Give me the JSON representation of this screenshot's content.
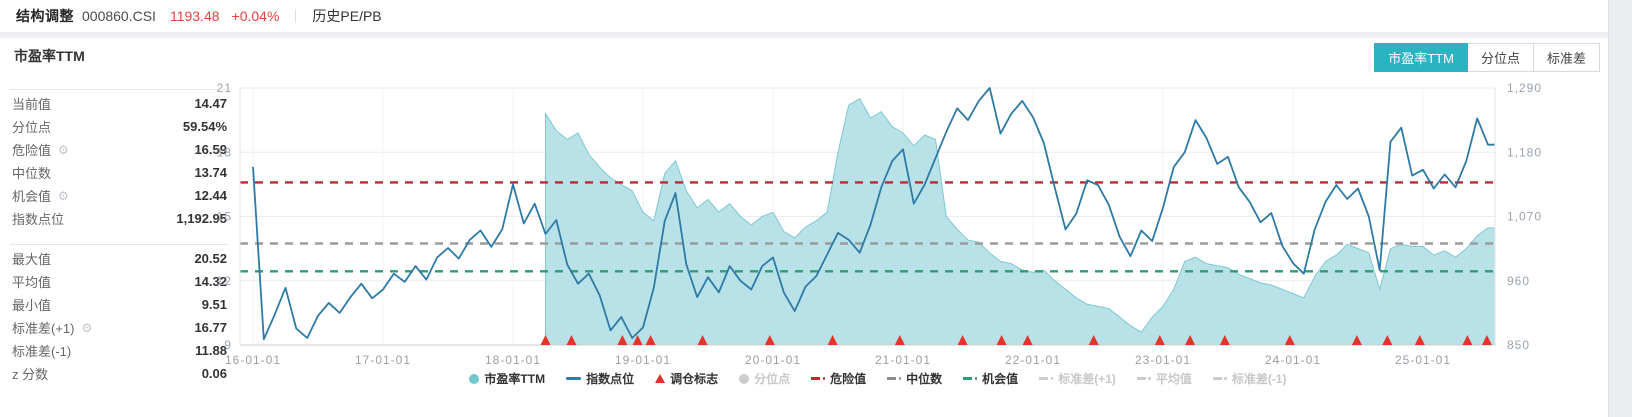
{
  "header": {
    "index_name": "结构调整",
    "index_code": "000860.CSI",
    "price": "1193.48",
    "change": "+0.04%",
    "section": "历史PE/PB"
  },
  "panel": {
    "title": "市盈率TTM"
  },
  "switcher": {
    "buttons": [
      {
        "label": "市盈率TTM",
        "active": true
      },
      {
        "label": "分位点",
        "active": false
      },
      {
        "label": "标准差",
        "active": false
      }
    ]
  },
  "stats": {
    "group1": [
      {
        "label": "当前值",
        "value": "14.47",
        "gear": false
      },
      {
        "label": "分位点",
        "value": "59.54%",
        "gear": false
      },
      {
        "label": "危险值",
        "value": "16.59",
        "gear": true
      },
      {
        "label": "中位数",
        "value": "13.74",
        "gear": false
      },
      {
        "label": "机会值",
        "value": "12.44",
        "gear": true
      },
      {
        "label": "指数点位",
        "value": "1,192.95",
        "gear": false
      }
    ],
    "group2": [
      {
        "label": "最大值",
        "value": "20.52",
        "gear": false
      },
      {
        "label": "平均值",
        "value": "14.32",
        "gear": false
      },
      {
        "label": "最小值",
        "value": "9.51",
        "gear": false
      },
      {
        "label": "标准差(+1)",
        "value": "16.77",
        "gear": true
      },
      {
        "label": "标准差(-1)",
        "value": "11.88",
        "gear": false
      },
      {
        "label": "z 分数",
        "value": "0.06",
        "gear": false
      }
    ]
  },
  "legend": {
    "items": [
      {
        "label": "市盈率TTM",
        "type": "circle",
        "color": "#74c6ce",
        "active": true
      },
      {
        "label": "指数点位",
        "type": "line",
        "color": "#2c7aa5",
        "active": true
      },
      {
        "label": "调仓标志",
        "type": "triangle",
        "color": "#e3302c",
        "active": true
      },
      {
        "label": "分位点",
        "type": "circle",
        "color": "#cccccc",
        "active": false
      },
      {
        "label": "危险值",
        "type": "dash",
        "color": "#b92b2e",
        "active": true
      },
      {
        "label": "中位数",
        "type": "dash",
        "color": "#8c8c8c",
        "active": true
      },
      {
        "label": "机会值",
        "type": "dash",
        "color": "#2e9c76",
        "active": true
      },
      {
        "label": "标准差(+1)",
        "type": "dash",
        "color": "#cccccc",
        "active": false
      },
      {
        "label": "平均值",
        "type": "dash",
        "color": "#cccccc",
        "active": false
      },
      {
        "label": "标准差(-1)",
        "type": "dash",
        "color": "#cccccc",
        "active": false
      }
    ]
  },
  "colors": {
    "accent_teal": "#2ab4c1",
    "up_red": "#e8423e",
    "pe_area": "#aadce3",
    "index_line": "#2c7aa5",
    "danger_line": "#b92b2e",
    "median_line": "#9b9b9b",
    "chance_line": "#2e9c76",
    "marker_red": "#e63329"
  },
  "chart_data": {
    "type": "line",
    "title": "市盈率TTM",
    "x_tick_labels": [
      "16-01-01",
      "17-01-01",
      "18-01-01",
      "19-01-01",
      "20-01-01",
      "21-01-01",
      "22-01-01",
      "23-01-01",
      "24-01-01",
      "25-01-01"
    ],
    "months_per_tick": 12,
    "left_axis": {
      "label": "市盈率TTM",
      "min": 9,
      "max": 21,
      "ticks": [
        21,
        18,
        15,
        12,
        9
      ]
    },
    "right_axis": {
      "label": "指数点位",
      "min": 850,
      "max": 1290,
      "ticks": [
        1290,
        1180,
        1070,
        960,
        850
      ],
      "tick_labels": [
        "1,290",
        "1,180",
        "1,070",
        "960",
        "850"
      ]
    },
    "series": [
      {
        "name": "市盈率TTM",
        "type": "area",
        "axis": "left",
        "color": "#aadce3",
        "start_month": 27,
        "values": [
          19.8,
          19.0,
          18.6,
          18.9,
          17.9,
          17.3,
          16.8,
          16.5,
          16.2,
          15.2,
          14.8,
          17.0,
          17.6,
          16.2,
          15.4,
          15.8,
          15.2,
          15.6,
          15.0,
          14.6,
          15.0,
          15.2,
          14.3,
          14.0,
          14.5,
          14.8,
          15.2,
          18.0,
          20.2,
          20.5,
          19.6,
          19.9,
          19.2,
          18.9,
          18.3,
          18.8,
          18.6,
          15.0,
          14.4,
          13.9,
          13.8,
          13.3,
          12.9,
          12.8,
          12.5,
          12.4,
          12.5,
          12.0,
          11.6,
          11.2,
          10.9,
          10.8,
          10.7,
          10.3,
          9.9,
          9.6,
          10.3,
          10.8,
          11.6,
          12.9,
          13.1,
          12.8,
          12.7,
          12.6,
          12.3,
          12.1,
          11.9,
          11.8,
          11.6,
          11.4,
          11.2,
          12.2,
          12.9,
          13.2,
          13.7,
          13.5,
          13.3,
          11.6,
          13.5,
          13.7,
          13.6,
          13.6,
          13.2,
          13.4,
          13.1,
          13.5,
          14.1,
          14.47
        ]
      },
      {
        "name": "指数点位",
        "type": "line",
        "axis": "right",
        "color": "#2c7aa5",
        "start_month": 0,
        "values": [
          1155,
          860,
          902,
          948,
          878,
          862,
          900,
          922,
          905,
          932,
          955,
          930,
          945,
          972,
          958,
          985,
          962,
          1000,
          1016,
          998,
          1030,
          1046,
          1018,
          1048,
          1125,
          1058,
          1092,
          1040,
          1064,
          988,
          955,
          972,
          935,
          875,
          898,
          862,
          880,
          948,
          1062,
          1110,
          988,
          932,
          966,
          940,
          985,
          960,
          945,
          985,
          1000,
          940,
          908,
          950,
          968,
          1005,
          1042,
          1030,
          1008,
          1056,
          1120,
          1165,
          1185,
          1092,
          1125,
          1170,
          1215,
          1255,
          1235,
          1268,
          1290,
          1212,
          1246,
          1268,
          1240,
          1196,
          1120,
          1048,
          1075,
          1132,
          1124,
          1090,
          1035,
          1002,
          1046,
          1028,
          1085,
          1155,
          1180,
          1235,
          1205,
          1160,
          1172,
          1120,
          1095,
          1060,
          1076,
          1020,
          990,
          972,
          1048,
          1095,
          1124,
          1100,
          1118,
          1070,
          978,
          1198,
          1222,
          1140,
          1150,
          1118,
          1142,
          1120,
          1165,
          1238,
          1193
        ]
      }
    ],
    "reference_lines": [
      {
        "name": "危险值",
        "axis": "left",
        "value": 16.59,
        "color": "#b92b2e",
        "style": "dashed"
      },
      {
        "name": "中位数",
        "axis": "left",
        "value": 13.74,
        "color": "#9b9b9b",
        "style": "dashed"
      },
      {
        "name": "机会值",
        "axis": "left",
        "value": 12.44,
        "color": "#2e9c76",
        "style": "dashed"
      }
    ],
    "rebalance_markers": {
      "name": "调仓标志",
      "color": "#e63329",
      "months": [
        27.0,
        29.4,
        34.1,
        35.5,
        36.7,
        41.5,
        47.7,
        53.5,
        59.7,
        65.5,
        69.1,
        71.5,
        77.6,
        83.7,
        86.5,
        89.7,
        95.7,
        101.9,
        104.7,
        107.7,
        112.1,
        113.9
      ]
    }
  }
}
